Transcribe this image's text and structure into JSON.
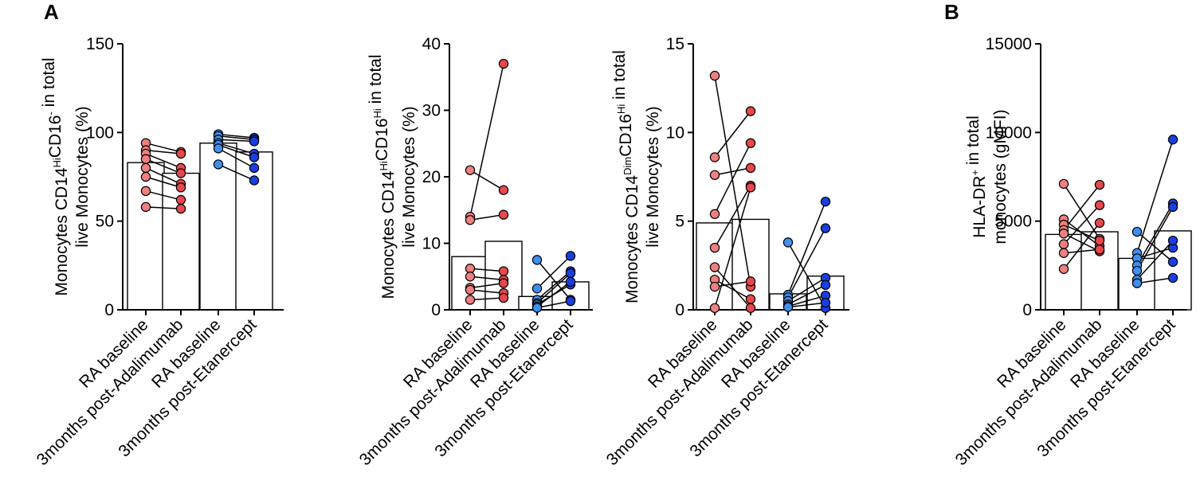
{
  "panel_labels": [
    "A",
    "B"
  ],
  "colors": {
    "rheumatoid_arthritis_red": "#e5484d",
    "rheumatoid_arthritis_light": "#ef8080",
    "etanercept_blue": "#1a3fe0",
    "etanercept_light": "#3f8ff0"
  },
  "chart_data": [
    {
      "type": "bar",
      "panel": "A",
      "ylabel_parts": [
        {
          "t": "Monocytes CD14"
        },
        {
          "t": "Hi",
          "sup": true
        },
        {
          "t": "CD16"
        },
        {
          "t": "-",
          "sup": true
        },
        {
          "t": " in total"
        }
      ],
      "ylabel_line2": "live Monocytes (%)",
      "ylim": [
        0,
        150
      ],
      "yticks": [
        0,
        50,
        100,
        150
      ],
      "yticklabels": [
        "0",
        "50",
        "100",
        "150"
      ],
      "categories": [
        "RA baseline",
        "3months post-Adalimumab",
        "RA baseline",
        "3months post-Etanercept"
      ],
      "bar_values": [
        83,
        77,
        94,
        89
      ],
      "pairs": [
        {
          "group": "Adalimumab",
          "points": [
            [
              94,
              89
            ],
            [
              90,
              88
            ],
            [
              88,
              80
            ],
            [
              85,
              77
            ],
            [
              80,
              71
            ],
            [
              75,
              69
            ],
            [
              67,
              62
            ],
            [
              58,
              57
            ]
          ]
        },
        {
          "group": "Etanercept",
          "points": [
            [
              99,
              97
            ],
            [
              98,
              96
            ],
            [
              96,
              95
            ],
            [
              94,
              88
            ],
            [
              93,
              86
            ],
            [
              91,
              80
            ],
            [
              82,
              73
            ]
          ]
        }
      ]
    },
    {
      "type": "bar",
      "panel": "A",
      "ylabel_parts": [
        {
          "t": "Monocytes CD14"
        },
        {
          "t": "Hi",
          "sup": true
        },
        {
          "t": "CD16"
        },
        {
          "t": "Hi",
          "sup": true
        },
        {
          "t": " in total"
        }
      ],
      "ylabel_line2": "live Monocytes (%)",
      "ylim": [
        0,
        40
      ],
      "yticks": [
        0,
        10,
        20,
        30,
        40
      ],
      "yticklabels": [
        "0",
        "10",
        "20",
        "30",
        "40"
      ],
      "categories": [
        "RA baseline",
        "3months post-Adalimumab",
        "RA baseline",
        "3months post-Etanercept"
      ],
      "bar_values": [
        8,
        10.3,
        2,
        4.2
      ],
      "pairs": [
        {
          "group": "Adalimumab",
          "points": [
            [
              21,
              18
            ],
            [
              14,
              37
            ],
            [
              13.5,
              14.3
            ],
            [
              6.2,
              5.8
            ],
            [
              5,
              4.5
            ],
            [
              3.3,
              4
            ],
            [
              3,
              2.5
            ],
            [
              1.5,
              1.8
            ]
          ]
        },
        {
          "group": "Etanercept",
          "points": [
            [
              7.5,
              1.5
            ],
            [
              3.2,
              8.1
            ],
            [
              1.5,
              5.8
            ],
            [
              1,
              5.5
            ],
            [
              0.8,
              3.8
            ],
            [
              0.5,
              4.2
            ],
            [
              0.3,
              1.3
            ]
          ]
        }
      ]
    },
    {
      "type": "bar",
      "panel": "A",
      "ylabel_parts": [
        {
          "t": "Monocytes CD14"
        },
        {
          "t": "Dim",
          "sup": true
        },
        {
          "t": "CD16"
        },
        {
          "t": "Hi",
          "sup": true
        },
        {
          "t": " in total"
        }
      ],
      "ylabel_line2": "live Monocytes (%)",
      "ylim": [
        0,
        15
      ],
      "yticks": [
        0,
        5,
        10,
        15
      ],
      "yticklabels": [
        "0",
        "5",
        "10",
        "15"
      ],
      "categories": [
        "RA baseline",
        "3months post-Adalimumab",
        "RA baseline",
        "3months post-Etanercept"
      ],
      "bar_values": [
        4.9,
        5.1,
        0.9,
        1.9
      ],
      "pairs": [
        {
          "group": "Adalimumab",
          "points": [
            [
              13.2,
              1.3
            ],
            [
              8.6,
              11.2
            ],
            [
              7.6,
              8
            ],
            [
              5.4,
              9.4
            ],
            [
              3.5,
              7
            ],
            [
              2.4,
              0.1
            ],
            [
              1.7,
              0.6
            ],
            [
              1.3,
              1.6
            ],
            [
              0.1,
              6.9
            ]
          ]
        },
        {
          "group": "Etanercept",
          "points": [
            [
              3.8,
              0.1
            ],
            [
              0.85,
              6.1
            ],
            [
              0.7,
              4.6
            ],
            [
              0.5,
              1.8
            ],
            [
              0.3,
              1.4
            ],
            [
              0.2,
              0.8
            ],
            [
              0.15,
              0.4
            ]
          ]
        }
      ]
    },
    {
      "type": "bar",
      "panel": "B",
      "ylabel_parts": [
        {
          "t": "HLA-DR"
        },
        {
          "t": "+",
          "sup": true
        },
        {
          "t": " in total"
        }
      ],
      "ylabel_line2": "monocytes (gMFI)",
      "ylim": [
        0,
        15000
      ],
      "yticks": [
        0,
        5000,
        10000,
        15000
      ],
      "yticklabels": [
        "0",
        "5000",
        "10000",
        "15000"
      ],
      "categories": [
        "RA baseline",
        "3months post-Adalimumab",
        "RA baseline",
        "3months post-Etanercept"
      ],
      "bar_values": [
        4250,
        4400,
        2900,
        4450
      ],
      "pairs": [
        {
          "group": "Adalimumab",
          "points": [
            [
              7100,
              4000
            ],
            [
              5100,
              3600
            ],
            [
              4800,
              3900
            ],
            [
              4500,
              7050
            ],
            [
              4300,
              3300
            ],
            [
              3700,
              5900
            ],
            [
              3200,
              3400
            ],
            [
              2300,
              4900
            ]
          ]
        },
        {
          "group": "Etanercept",
          "points": [
            [
              4400,
              2700
            ],
            [
              3200,
              9600
            ],
            [
              2900,
              3500
            ],
            [
              2500,
              6000
            ],
            [
              2200,
              5800
            ],
            [
              1700,
              3900
            ],
            [
              1500,
              1800
            ]
          ]
        }
      ]
    }
  ]
}
